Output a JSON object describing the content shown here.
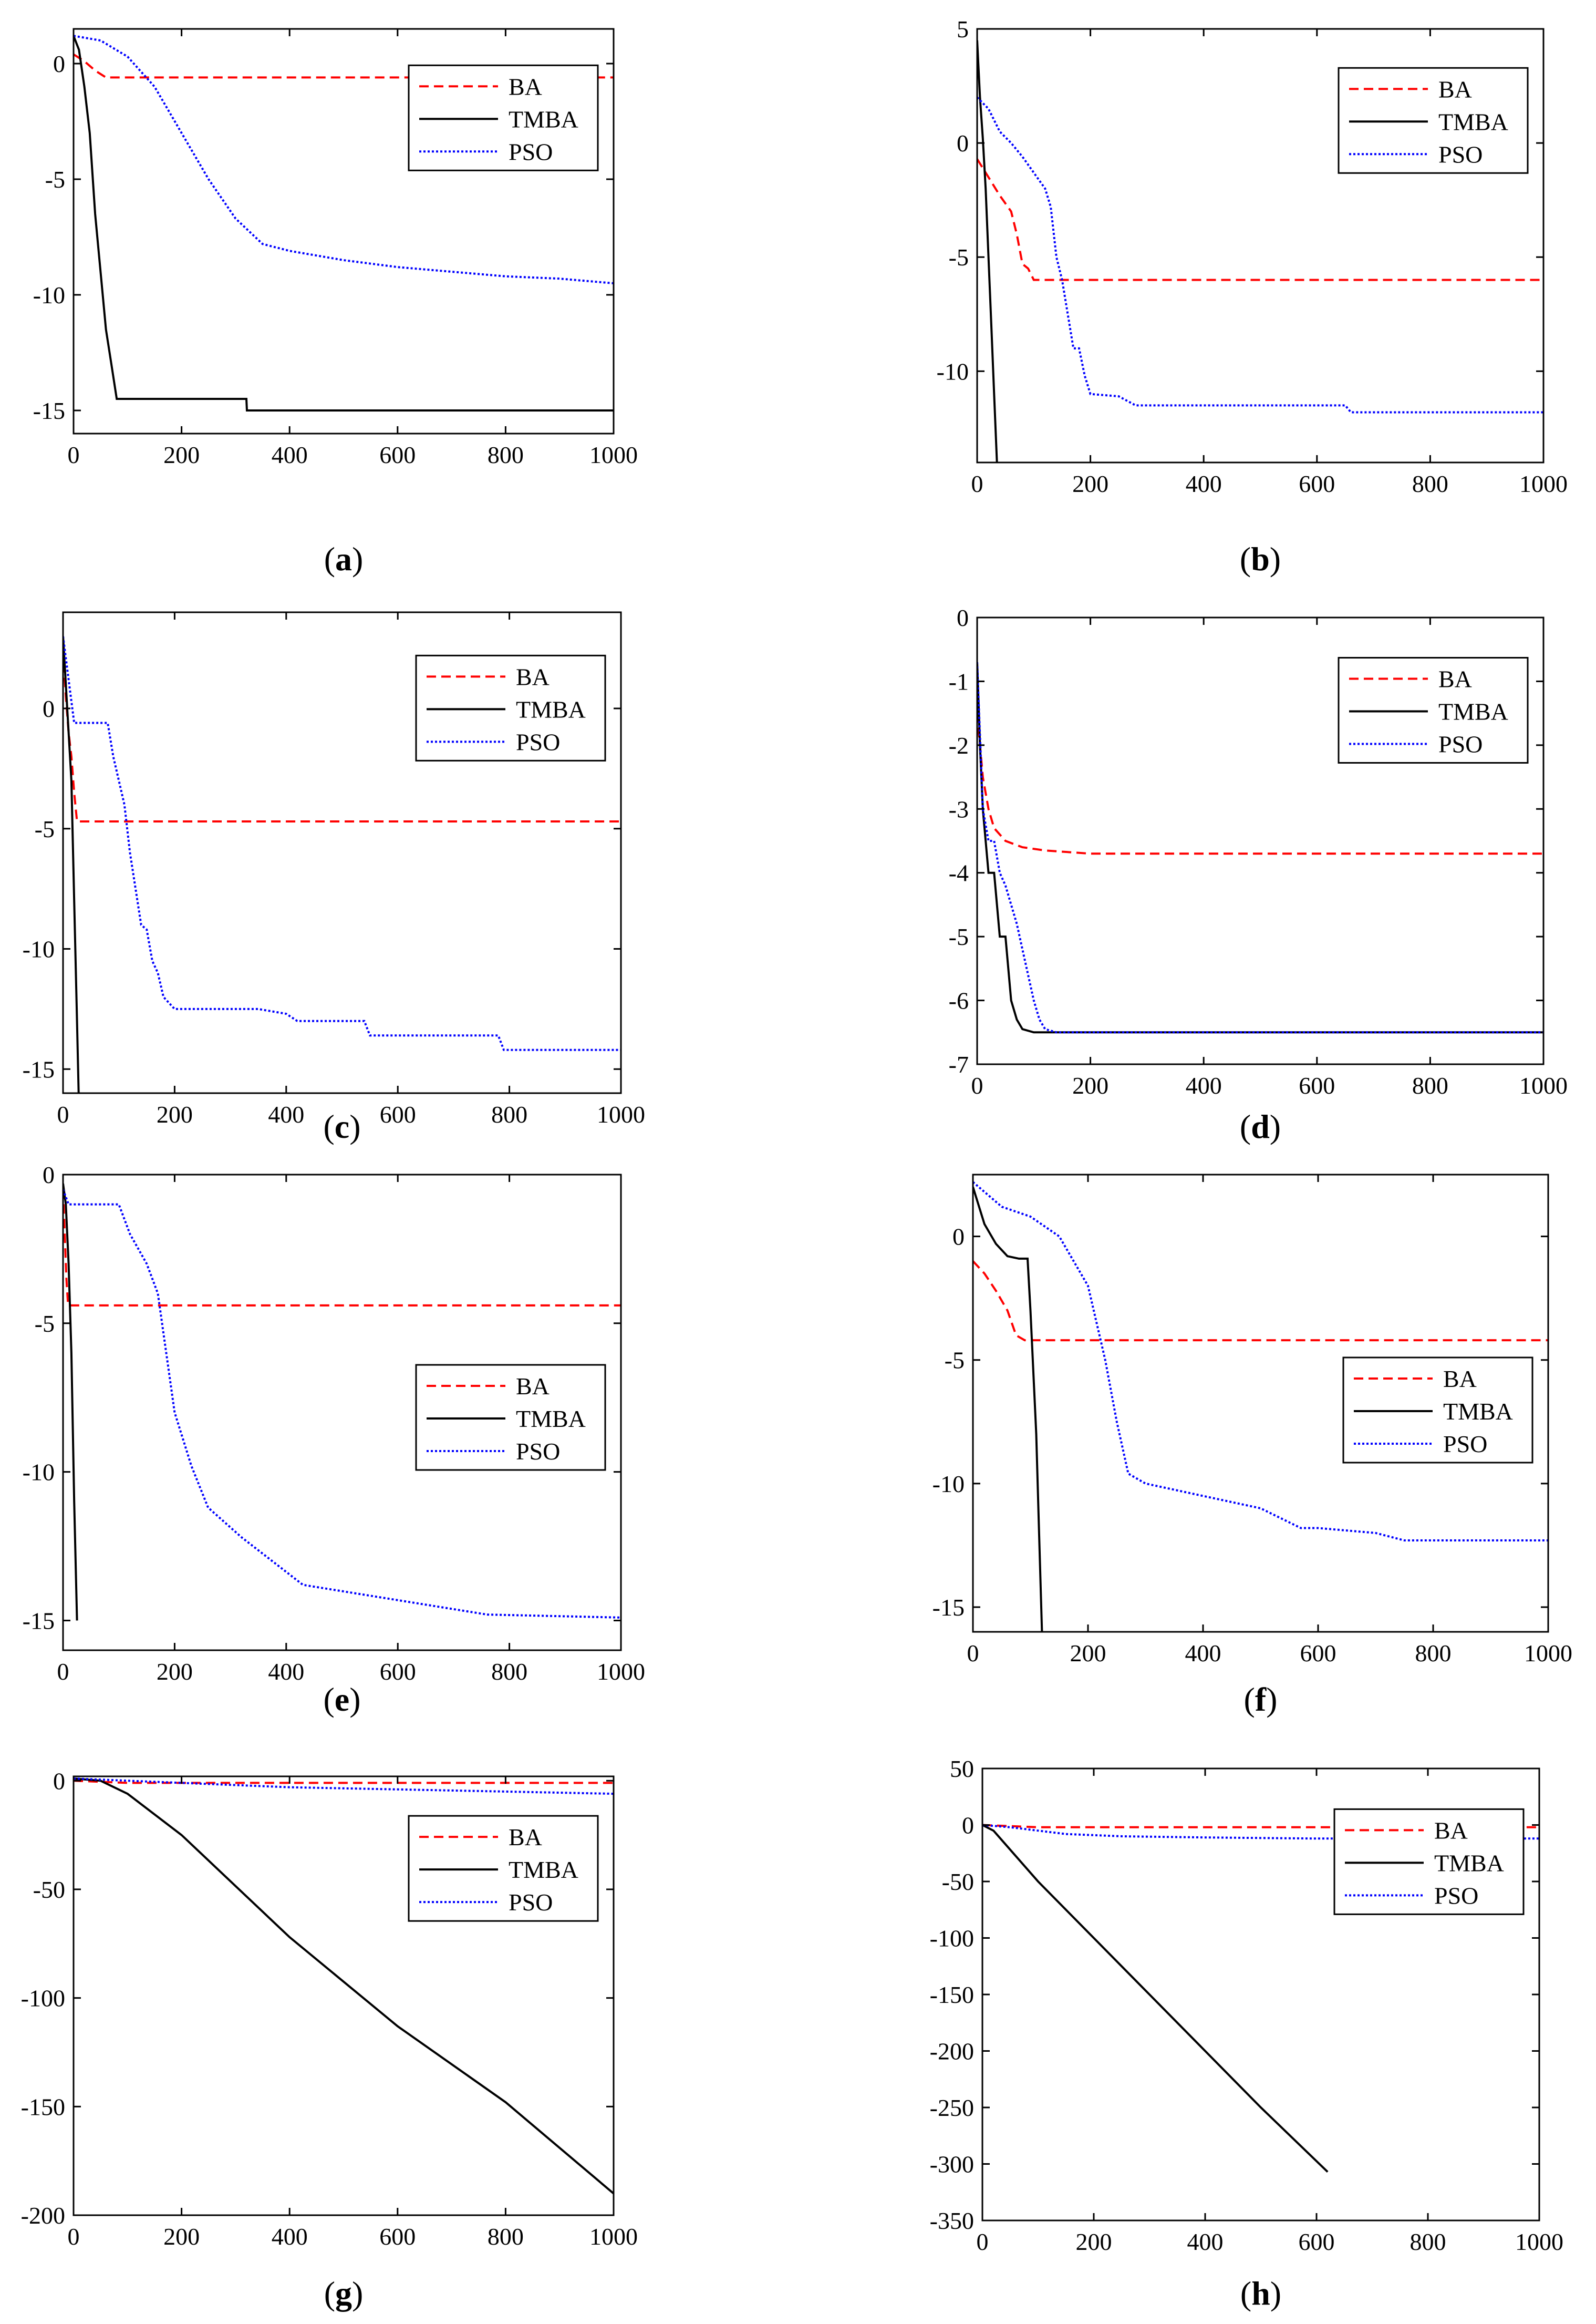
{
  "figure": {
    "legend_labels": [
      "BA",
      "TMBA",
      "PSO"
    ],
    "series_styles": {
      "BA": {
        "color": "#ff0000",
        "dash": "dashed"
      },
      "TMBA": {
        "color": "#000000",
        "dash": "solid"
      },
      "PSO": {
        "color": "#0000ff",
        "dash": "dotted"
      }
    }
  },
  "chart_data": [
    {
      "id": "a",
      "caption_open": "(",
      "caption_letter": "a",
      "caption_close": ")",
      "type": "line",
      "xlim": [
        0,
        1000
      ],
      "ylim": [
        -16,
        1.5
      ],
      "xticks": [
        0,
        200,
        400,
        600,
        800,
        1000
      ],
      "yticks": [
        0,
        -5,
        -10,
        -15
      ],
      "legend_position": "upper-right",
      "series": [
        {
          "name": "BA",
          "x": [
            0,
            20,
            40,
            60,
            1000
          ],
          "y": [
            0.4,
            0.1,
            -0.3,
            -0.6,
            -0.6
          ]
        },
        {
          "name": "TMBA",
          "x": [
            0,
            10,
            20,
            30,
            40,
            50,
            60,
            70,
            80,
            320,
            321,
            1000
          ],
          "y": [
            1.2,
            0.6,
            -1.0,
            -3.0,
            -6.5,
            -9.0,
            -11.5,
            -13.0,
            -14.5,
            -14.5,
            -15.0,
            -15.0
          ]
        },
        {
          "name": "PSO",
          "x": [
            0,
            50,
            100,
            150,
            200,
            250,
            300,
            350,
            400,
            450,
            500,
            600,
            700,
            800,
            900,
            1000
          ],
          "y": [
            1.2,
            1.0,
            0.3,
            -1.0,
            -3.0,
            -5.0,
            -6.7,
            -7.8,
            -8.1,
            -8.3,
            -8.5,
            -8.8,
            -9.0,
            -9.2,
            -9.3,
            -9.5
          ]
        }
      ]
    },
    {
      "id": "b",
      "caption_open": "(",
      "caption_letter": "b",
      "caption_close": ")",
      "type": "line",
      "xlim": [
        0,
        1000
      ],
      "ylim": [
        -14,
        5
      ],
      "xticks": [
        0,
        200,
        400,
        600,
        800,
        1000
      ],
      "yticks": [
        5,
        0,
        -5,
        -10
      ],
      "legend_position": "upper-right",
      "series": [
        {
          "name": "BA",
          "x": [
            0,
            20,
            40,
            60,
            70,
            80,
            90,
            100,
            1000
          ],
          "y": [
            -0.7,
            -1.5,
            -2.3,
            -3.0,
            -4.0,
            -5.3,
            -5.5,
            -6.0,
            -6.0
          ]
        },
        {
          "name": "TMBA",
          "x": [
            0,
            5,
            10,
            15,
            20,
            25,
            30,
            35
          ],
          "y": [
            4.5,
            2.0,
            0.2,
            -2.0,
            -5.0,
            -8.0,
            -11.0,
            -14.0
          ]
        },
        {
          "name": "PSO",
          "x": [
            0,
            20,
            40,
            60,
            80,
            100,
            120,
            130,
            140,
            150,
            160,
            170,
            180,
            190,
            200,
            250,
            280,
            300,
            500,
            650,
            660,
            1000
          ],
          "y": [
            2.0,
            1.5,
            0.5,
            0.0,
            -0.6,
            -1.3,
            -2.0,
            -2.8,
            -5.0,
            -6.0,
            -7.5,
            -9.0,
            -9.0,
            -10.2,
            -11.0,
            -11.1,
            -11.5,
            -11.5,
            -11.5,
            -11.5,
            -11.8,
            -11.8
          ]
        }
      ]
    },
    {
      "id": "c",
      "caption_open": "(",
      "caption_letter": "c",
      "caption_close": ")",
      "type": "line",
      "xlim": [
        0,
        1000
      ],
      "ylim": [
        -16,
        4
      ],
      "xticks": [
        0,
        200,
        400,
        600,
        800,
        1000
      ],
      "yticks": [
        0,
        -5,
        -10,
        -15
      ],
      "legend_position": "upper-right",
      "series": [
        {
          "name": "BA",
          "x": [
            0,
            5,
            10,
            15,
            20,
            25,
            1000
          ],
          "y": [
            2.5,
            0.5,
            -1.0,
            -2.0,
            -3.5,
            -4.7,
            -4.7
          ]
        },
        {
          "name": "TMBA",
          "x": [
            0,
            5,
            10,
            15,
            20,
            25,
            28
          ],
          "y": [
            3.0,
            1.0,
            -1.0,
            -3.0,
            -8.0,
            -13.0,
            -16.0
          ]
        },
        {
          "name": "PSO",
          "x": [
            0,
            20,
            80,
            90,
            110,
            120,
            140,
            150,
            160,
            170,
            180,
            200,
            350,
            400,
            420,
            540,
            550,
            780,
            790,
            1000
          ],
          "y": [
            3.0,
            -0.6,
            -0.6,
            -2.0,
            -4.0,
            -6.0,
            -9.0,
            -9.2,
            -10.5,
            -11.0,
            -12.0,
            -12.5,
            -12.5,
            -12.7,
            -13.0,
            -13.0,
            -13.6,
            -13.6,
            -14.2,
            -14.2
          ]
        }
      ]
    },
    {
      "id": "d",
      "caption_open": "(",
      "caption_letter": "d",
      "caption_close": ")",
      "type": "line",
      "xlim": [
        0,
        1000
      ],
      "ylim": [
        -7,
        0
      ],
      "xticks": [
        0,
        200,
        400,
        600,
        800,
        1000
      ],
      "yticks": [
        0,
        -1,
        -2,
        -3,
        -4,
        -5,
        -6,
        -7
      ],
      "legend_position": "upper-right",
      "series": [
        {
          "name": "BA",
          "x": [
            0,
            10,
            20,
            30,
            50,
            80,
            120,
            200,
            300,
            1000
          ],
          "y": [
            -1.5,
            -2.5,
            -3.0,
            -3.3,
            -3.5,
            -3.6,
            -3.65,
            -3.7,
            -3.7,
            -3.7
          ]
        },
        {
          "name": "TMBA",
          "x": [
            0,
            5,
            10,
            20,
            30,
            40,
            50,
            60,
            70,
            80,
            100,
            150,
            1000
          ],
          "y": [
            -0.7,
            -2.0,
            -3.0,
            -4.0,
            -4.0,
            -5.0,
            -5.0,
            -6.0,
            -6.3,
            -6.45,
            -6.5,
            -6.5,
            -6.5
          ]
        },
        {
          "name": "PSO",
          "x": [
            0,
            10,
            20,
            30,
            40,
            50,
            60,
            70,
            80,
            90,
            100,
            110,
            120,
            140,
            200,
            1000
          ],
          "y": [
            -0.7,
            -3.0,
            -3.5,
            -3.5,
            -4.0,
            -4.2,
            -4.5,
            -4.8,
            -5.2,
            -5.6,
            -6.0,
            -6.3,
            -6.45,
            -6.5,
            -6.5,
            -6.5
          ]
        }
      ]
    },
    {
      "id": "e",
      "caption_open": "(",
      "caption_letter": "e",
      "caption_close": ")",
      "type": "line",
      "xlim": [
        0,
        1000
      ],
      "ylim": [
        -16,
        0
      ],
      "xticks": [
        0,
        200,
        400,
        600,
        800,
        1000
      ],
      "yticks": [
        0,
        -5,
        -10,
        -15
      ],
      "legend_position": "middle-right",
      "series": [
        {
          "name": "BA",
          "x": [
            0,
            3,
            6,
            9,
            1000
          ],
          "y": [
            -0.5,
            -2.0,
            -3.5,
            -4.4,
            -4.4
          ]
        },
        {
          "name": "TMBA",
          "x": [
            0,
            5,
            10,
            15,
            20,
            25
          ],
          "y": [
            -0.3,
            -1.0,
            -3.0,
            -6.0,
            -11.0,
            -15.0
          ]
        },
        {
          "name": "PSO",
          "x": [
            0,
            10,
            20,
            100,
            120,
            150,
            170,
            200,
            230,
            260,
            320,
            430,
            760,
            1000
          ],
          "y": [
            -0.5,
            -1.0,
            -1.0,
            -1.0,
            -2.0,
            -3.0,
            -4.0,
            -8.0,
            -9.8,
            -11.2,
            -12.2,
            -13.8,
            -14.8,
            -14.9
          ]
        }
      ]
    },
    {
      "id": "f",
      "caption_open": "(",
      "caption_letter": "f",
      "caption_close": ")",
      "type": "line",
      "xlim": [
        0,
        1000
      ],
      "ylim": [
        -16,
        2.5
      ],
      "xticks": [
        0,
        200,
        400,
        600,
        800,
        1000
      ],
      "yticks": [
        0,
        -5,
        -10,
        -15
      ],
      "legend_position": "middle-right",
      "series": [
        {
          "name": "BA",
          "x": [
            0,
            20,
            40,
            60,
            75,
            90,
            1000
          ],
          "y": [
            -1.0,
            -1.5,
            -2.2,
            -3.0,
            -4.0,
            -4.2,
            -4.2
          ]
        },
        {
          "name": "TMBA",
          "x": [
            0,
            20,
            40,
            60,
            80,
            95,
            100,
            110,
            115,
            120
          ],
          "y": [
            2.0,
            0.5,
            -0.3,
            -0.8,
            -0.9,
            -0.9,
            -3.0,
            -8.0,
            -12.0,
            -16.0
          ]
        },
        {
          "name": "PSO",
          "x": [
            0,
            50,
            100,
            150,
            200,
            230,
            250,
            270,
            300,
            400,
            500,
            570,
            600,
            700,
            750,
            800,
            900,
            1000
          ],
          "y": [
            2.2,
            1.2,
            0.8,
            0.0,
            -2.0,
            -5.0,
            -7.5,
            -9.6,
            -10.0,
            -10.5,
            -11.0,
            -11.8,
            -11.8,
            -12.0,
            -12.3,
            -12.3,
            -12.3,
            -12.3
          ]
        }
      ]
    },
    {
      "id": "g",
      "caption_open": "(",
      "caption_letter": "g",
      "caption_close": ")",
      "type": "line",
      "xlim": [
        0,
        1000
      ],
      "ylim": [
        -200,
        2
      ],
      "xticks": [
        0,
        200,
        400,
        600,
        800,
        1000
      ],
      "yticks": [
        0,
        -50,
        -100,
        -150,
        -200
      ],
      "legend_position": "upper-right",
      "series": [
        {
          "name": "BA",
          "x": [
            0,
            100,
            1000
          ],
          "y": [
            0,
            -1,
            -1
          ]
        },
        {
          "name": "TMBA",
          "x": [
            0,
            50,
            100,
            200,
            400,
            600,
            800,
            1000
          ],
          "y": [
            1,
            0,
            -6,
            -25,
            -72,
            -113,
            -148,
            -190
          ]
        },
        {
          "name": "PSO",
          "x": [
            0,
            200,
            400,
            600,
            800,
            1000
          ],
          "y": [
            1,
            -1,
            -3,
            -4,
            -5,
            -6
          ]
        }
      ]
    },
    {
      "id": "h",
      "caption_open": "(",
      "caption_letter": "h",
      "caption_close": ")",
      "type": "line",
      "xlim": [
        0,
        1000
      ],
      "ylim": [
        -350,
        50
      ],
      "xticks": [
        0,
        200,
        400,
        600,
        800,
        1000
      ],
      "yticks": [
        50,
        0,
        -50,
        -100,
        -150,
        -200,
        -250,
        -300,
        -350
      ],
      "legend_position": "upper-right",
      "series": [
        {
          "name": "BA",
          "x": [
            0,
            100,
            1000
          ],
          "y": [
            0,
            -2,
            -2
          ]
        },
        {
          "name": "TMBA",
          "x": [
            0,
            20,
            100,
            200,
            300,
            400,
            500,
            620
          ],
          "y": [
            0,
            -5,
            -50,
            -100,
            -150,
            -200,
            -250,
            -307
          ]
        },
        {
          "name": "PSO",
          "x": [
            0,
            50,
            150,
            250,
            400,
            600,
            800,
            1000
          ],
          "y": [
            0,
            -2,
            -8,
            -10,
            -11,
            -12,
            -12,
            -12
          ]
        }
      ]
    }
  ]
}
